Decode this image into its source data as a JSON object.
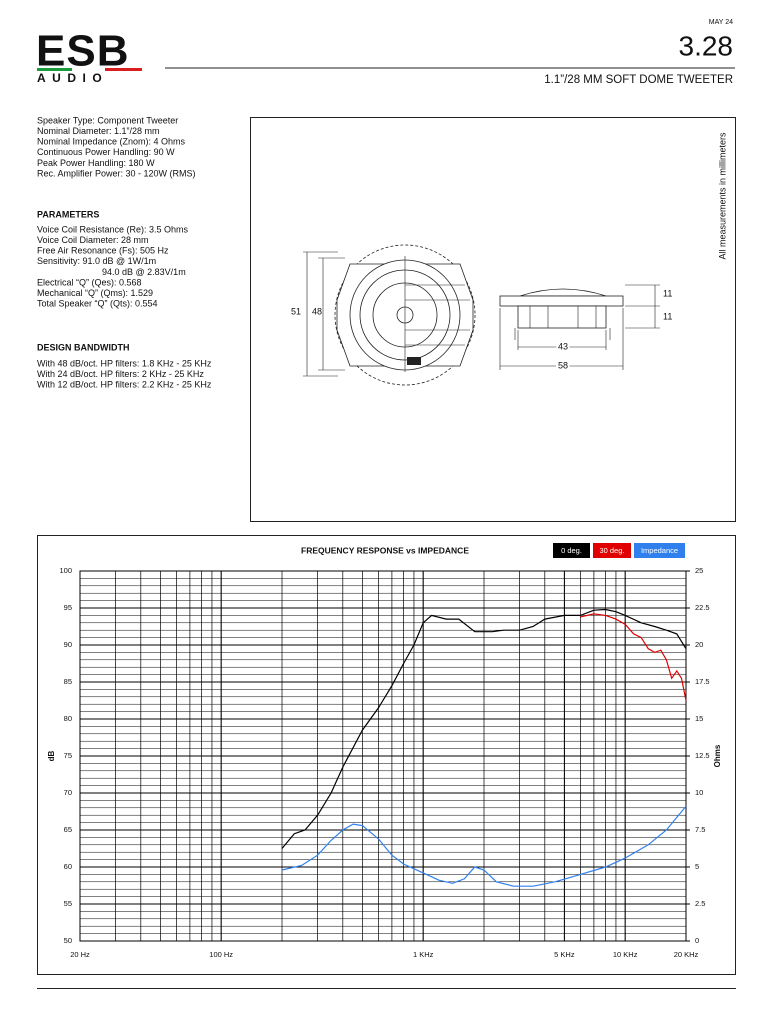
{
  "header": {
    "logo": "ESB",
    "logo_sub": "AUDIO",
    "date": "MAY 24",
    "model": "3.28",
    "product": "1.1”/28 MM SOFT DOME TWEETER"
  },
  "specs": [
    "Speaker Type: Component Tweeter",
    "Nominal Diameter: 1.1”/28 mm",
    "Nominal Impedance (Znom): 4 Ohms",
    "Continuous Power Handling: 90 W",
    "Peak Power Handling: 180 W",
    "Rec. Amplifier Power: 30 - 120W (RMS)"
  ],
  "parameters": {
    "title": "PARAMETERS",
    "items": [
      "Voice Coil Resistance (Re): 3.5 Ohms",
      "Voice Coil Diameter: 28 mm",
      "Free Air Resonance (Fs): 505 Hz",
      "Sensitivity: 91.0 dB @ 1W/1m",
      "94.0 dB @ 2.83V/1m",
      "Electrical “Q” (Qes): 0.568",
      "Mechanical “Q” (Qms): 1.529",
      "Total Speaker “Q” (Qts): 0.554"
    ]
  },
  "bandwidth": {
    "title": "DESIGN BANDWIDTH",
    "items": [
      "With 48 dB/oct. HP filters: 1.8 KHz - 25 KHz",
      "With 24 dB/oct. HP filters: 2 KHz - 25 KHz",
      "With 12 dB/oct. HP filters: 2.2 KHz - 25 KHz"
    ]
  },
  "drawing": {
    "note": "All measurements in millimeters",
    "outer_diameter": "51",
    "inner_diameter": "48",
    "flange_height": "11",
    "body_height": "11",
    "body_width": "43",
    "total_width": "58"
  },
  "chart_data": {
    "type": "line",
    "title": "FREQUENCY RESPONSE vs IMPEDANCE",
    "ylabel": "dB",
    "y2label": "Ohms",
    "xscale": "log",
    "grid": true,
    "minor_grid": true,
    "xlim": [
      20,
      20000
    ],
    "ylim": [
      50,
      100
    ],
    "y2lim": [
      0,
      25
    ],
    "xticks": [
      {
        "value": 20,
        "label": "20 Hz"
      },
      {
        "value": 100,
        "label": "100 Hz"
      },
      {
        "value": 1000,
        "label": "1 KHz"
      },
      {
        "value": 5000,
        "label": "5 KHz"
      },
      {
        "value": 10000,
        "label": "10 KHz"
      },
      {
        "value": 20000,
        "label": "20 KHz"
      }
    ],
    "yticks": [
      50,
      55,
      60,
      65,
      70,
      75,
      80,
      85,
      90,
      95,
      100
    ],
    "y2ticks": [
      0,
      2.5,
      5,
      7.5,
      10,
      12.5,
      15,
      17.5,
      20,
      22.5,
      25
    ],
    "series": [
      {
        "name": "0 deg.",
        "color": "#000000",
        "x": [
          200,
          230,
          260,
          300,
          350,
          400,
          500,
          600,
          700,
          800,
          900,
          1000,
          1100,
          1300,
          1500,
          1800,
          2200,
          2500,
          3000,
          3500,
          4000,
          5000,
          6000,
          7000,
          8000,
          9000,
          10000,
          12000,
          14000,
          16000,
          18000,
          20000
        ],
        "values": [
          62.5,
          64.5,
          65,
          67,
          70,
          73.5,
          78.5,
          81.5,
          84.5,
          87.5,
          90,
          93,
          94,
          93.5,
          93.5,
          91.8,
          91.8,
          92,
          92,
          92.5,
          93.5,
          94,
          94,
          94.7,
          94.8,
          94.5,
          94,
          93,
          92.5,
          92,
          91.5,
          89.5
        ]
      },
      {
        "name": "30 deg.",
        "color": "#e00000",
        "x": [
          6000,
          7000,
          8000,
          9000,
          10000,
          11000,
          12000,
          13000,
          14000,
          15000,
          16000,
          17000,
          18000,
          19000,
          20000
        ],
        "values": [
          93.8,
          94.2,
          94,
          93.5,
          92.8,
          91.5,
          91,
          89.5,
          89,
          89.3,
          88,
          85.5,
          86.5,
          85.5,
          82.5
        ]
      },
      {
        "name": "Impedance",
        "color": "#2f80ed",
        "axis": "y2",
        "x": [
          200,
          250,
          300,
          350,
          400,
          450,
          500,
          600,
          700,
          800,
          1000,
          1200,
          1400,
          1600,
          1800,
          2000,
          2300,
          2800,
          3500,
          4500,
          6000,
          8000,
          10000,
          13000,
          16000,
          20000
        ],
        "values": [
          4.8,
          5.1,
          5.8,
          6.8,
          7.5,
          7.9,
          7.8,
          6.9,
          5.8,
          5.2,
          4.6,
          4.1,
          3.9,
          4.2,
          5.0,
          4.8,
          4.0,
          3.7,
          3.7,
          4.0,
          4.5,
          5.0,
          5.6,
          6.5,
          7.5,
          9.1
        ]
      }
    ]
  }
}
